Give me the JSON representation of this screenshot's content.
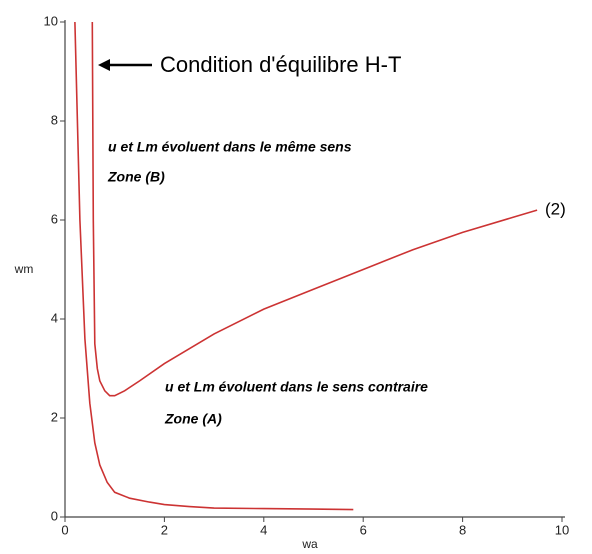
{
  "chart_data": {
    "type": "line",
    "xlabel": "wa",
    "ylabel": "wm",
    "xlim": [
      0,
      10
    ],
    "ylim": [
      0,
      10
    ],
    "xticks": [
      0,
      2,
      4,
      6,
      8,
      10
    ],
    "yticks": [
      0,
      2,
      4,
      6,
      8,
      10
    ],
    "series": [
      {
        "color": "#cc3333",
        "x": [
          0.2,
          0.25,
          0.3,
          0.4,
          0.5,
          0.6,
          0.7,
          0.85,
          1,
          1.3,
          1.7,
          2,
          2.5,
          3,
          4,
          5,
          5.8
        ],
        "values": [
          10,
          8,
          6,
          3.6,
          2.3,
          1.5,
          1.05,
          0.7,
          0.5,
          0.38,
          0.3,
          0.25,
          0.21,
          0.18,
          0.17,
          0.16,
          0.15
        ]
      },
      {
        "color": "#cc3333",
        "x": [
          0.55,
          0.56,
          0.57,
          0.6,
          0.65,
          0.7,
          0.8,
          0.9,
          1.0,
          1.2,
          1.5,
          2,
          3,
          4,
          5,
          6,
          7,
          8,
          9,
          9.5
        ],
        "values": [
          10,
          8,
          6,
          3.5,
          3.0,
          2.75,
          2.55,
          2.45,
          2.45,
          2.55,
          2.75,
          3.1,
          3.7,
          4.2,
          4.6,
          5.0,
          5.4,
          5.75,
          6.05,
          6.2
        ]
      }
    ],
    "annotations": [
      "Condition d'équilibre H-T",
      "u et Lm évoluent dans le même sens",
      "Zone (B)",
      "u et Lm évoluent dans le sens contraire",
      "Zone (A)",
      "(2)"
    ]
  }
}
